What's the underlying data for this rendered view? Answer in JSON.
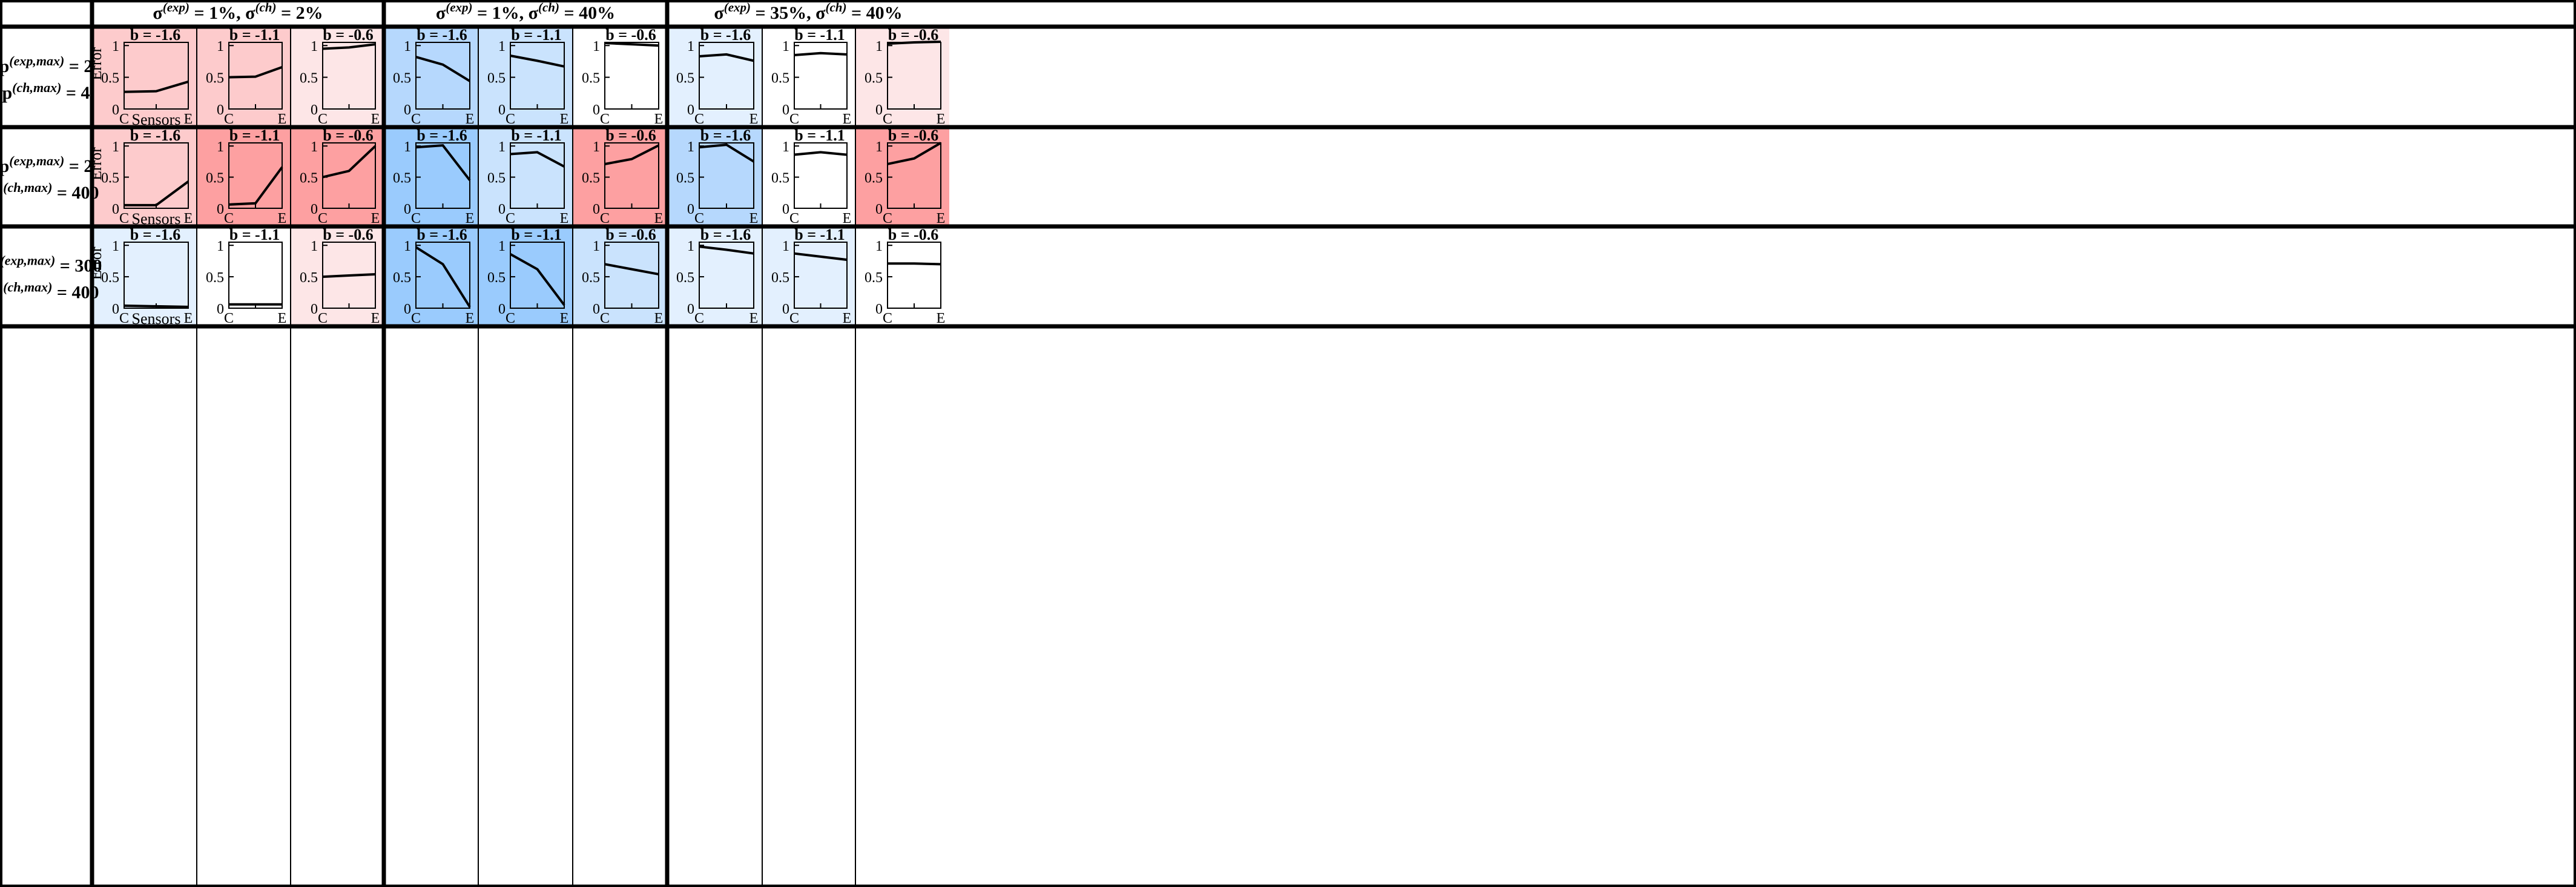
{
  "colors": {
    "red_light": "#fde6e7",
    "red_mid": "#fdcbcc",
    "red_strong": "#fda0a1",
    "blue_light": "#e3f0fe",
    "blue_mid": "#cae3fd",
    "blue_mid2": "#b6d8fd",
    "blue_strong": "#9acbfd",
    "white": "#ffffff",
    "line": "#000000"
  },
  "header": {
    "groups": [
      {
        "sigma_exp": "1%",
        "sigma_ch": "2%"
      },
      {
        "sigma_exp": "1%",
        "sigma_ch": "40%"
      },
      {
        "sigma_exp": "35%",
        "sigma_ch": "40%"
      }
    ],
    "sigma_symbol": "σ",
    "exp_sup": "(exp)",
    "ch_sup": "(ch)",
    "eq": " = ",
    "sep": ",  "
  },
  "rows": [
    {
      "p_exp": "2",
      "p_ch": "4"
    },
    {
      "p_exp": "2",
      "p_ch": "400"
    },
    {
      "p_exp": "300",
      "p_ch": "400"
    }
  ],
  "row_labels": {
    "p_symbol": "p",
    "exp_sup": "(exp,max)",
    "ch_sup": "(ch,max)",
    "eq": " = "
  },
  "b_labels": [
    "b = -1.6",
    "b = -1.1",
    "b = -0.6"
  ],
  "chart_data": {
    "type": "line",
    "title": "",
    "xlabel": "Sensors",
    "ylabel": "Error",
    "x": [
      "C",
      "",
      "E"
    ],
    "xtick_labels": [
      "C",
      "E"
    ],
    "ylim": [
      0,
      1.05
    ],
    "yticks": [
      0,
      0.5,
      1
    ],
    "ytick_labels": [
      "0",
      "0.5",
      "1"
    ],
    "grid": false,
    "panels": [
      {
        "row": 0,
        "col": 0,
        "b": "-1.6",
        "bg": "red_mid",
        "values": [
          0.27,
          0.28,
          0.43
        ]
      },
      {
        "row": 0,
        "col": 1,
        "b": "-1.1",
        "bg": "red_mid",
        "values": [
          0.5,
          0.51,
          0.66
        ]
      },
      {
        "row": 0,
        "col": 2,
        "b": "-0.6",
        "bg": "red_light",
        "values": [
          0.95,
          0.97,
          1.02
        ]
      },
      {
        "row": 0,
        "col": 3,
        "b": "-1.6",
        "bg": "blue_mid2",
        "values": [
          0.82,
          0.7,
          0.44
        ]
      },
      {
        "row": 0,
        "col": 4,
        "b": "-1.1",
        "bg": "blue_mid",
        "values": [
          0.84,
          0.76,
          0.67
        ]
      },
      {
        "row": 0,
        "col": 5,
        "b": "-0.6",
        "bg": "white",
        "values": [
          1.04,
          1.02,
          1.0
        ]
      },
      {
        "row": 0,
        "col": 6,
        "b": "-1.6",
        "bg": "blue_light",
        "values": [
          0.83,
          0.86,
          0.76
        ]
      },
      {
        "row": 0,
        "col": 7,
        "b": "-1.1",
        "bg": "white",
        "values": [
          0.85,
          0.88,
          0.86
        ]
      },
      {
        "row": 0,
        "col": 8,
        "b": "-0.6",
        "bg": "red_light",
        "values": [
          1.03,
          1.05,
          1.06
        ]
      },
      {
        "row": 1,
        "col": 0,
        "b": "-1.6",
        "bg": "red_mid",
        "values": [
          0.05,
          0.05,
          0.43
        ]
      },
      {
        "row": 1,
        "col": 1,
        "b": "-1.1",
        "bg": "red_strong",
        "values": [
          0.06,
          0.08,
          0.66
        ]
      },
      {
        "row": 1,
        "col": 2,
        "b": "-0.6",
        "bg": "red_strong",
        "values": [
          0.5,
          0.6,
          1.0
        ]
      },
      {
        "row": 1,
        "col": 3,
        "b": "-1.6",
        "bg": "blue_strong",
        "values": [
          0.98,
          1.01,
          0.45
        ]
      },
      {
        "row": 1,
        "col": 4,
        "b": "-1.1",
        "bg": "blue_mid",
        "values": [
          0.87,
          0.9,
          0.67
        ]
      },
      {
        "row": 1,
        "col": 5,
        "b": "-0.6",
        "bg": "red_strong",
        "values": [
          0.71,
          0.79,
          1.01
        ]
      },
      {
        "row": 1,
        "col": 6,
        "b": "-1.6",
        "bg": "blue_mid2",
        "values": [
          0.98,
          1.02,
          0.75
        ]
      },
      {
        "row": 1,
        "col": 7,
        "b": "-1.1",
        "bg": "white",
        "values": [
          0.86,
          0.9,
          0.86
        ]
      },
      {
        "row": 1,
        "col": 8,
        "b": "-0.6",
        "bg": "red_strong",
        "values": [
          0.71,
          0.8,
          1.05
        ]
      },
      {
        "row": 2,
        "col": 0,
        "b": "-1.6",
        "bg": "blue_light",
        "values": [
          0.04,
          0.03,
          0.02
        ]
      },
      {
        "row": 2,
        "col": 1,
        "b": "-1.1",
        "bg": "white",
        "values": [
          0.06,
          0.06,
          0.06
        ]
      },
      {
        "row": 2,
        "col": 2,
        "b": "-0.6",
        "bg": "red_light",
        "values": [
          0.5,
          0.52,
          0.54
        ]
      },
      {
        "row": 2,
        "col": 3,
        "b": "-1.6",
        "bg": "blue_strong",
        "values": [
          0.97,
          0.7,
          0.02
        ]
      },
      {
        "row": 2,
        "col": 4,
        "b": "-1.1",
        "bg": "blue_strong",
        "values": [
          0.86,
          0.62,
          0.05
        ]
      },
      {
        "row": 2,
        "col": 5,
        "b": "-0.6",
        "bg": "blue_mid",
        "values": [
          0.7,
          0.62,
          0.54
        ]
      },
      {
        "row": 2,
        "col": 6,
        "b": "-1.6",
        "bg": "blue_light",
        "values": [
          0.98,
          0.93,
          0.87
        ]
      },
      {
        "row": 2,
        "col": 7,
        "b": "-1.1",
        "bg": "blue_light",
        "values": [
          0.87,
          0.82,
          0.77
        ]
      },
      {
        "row": 2,
        "col": 8,
        "b": "-0.6",
        "bg": "white",
        "values": [
          0.71,
          0.71,
          0.7
        ]
      }
    ]
  }
}
